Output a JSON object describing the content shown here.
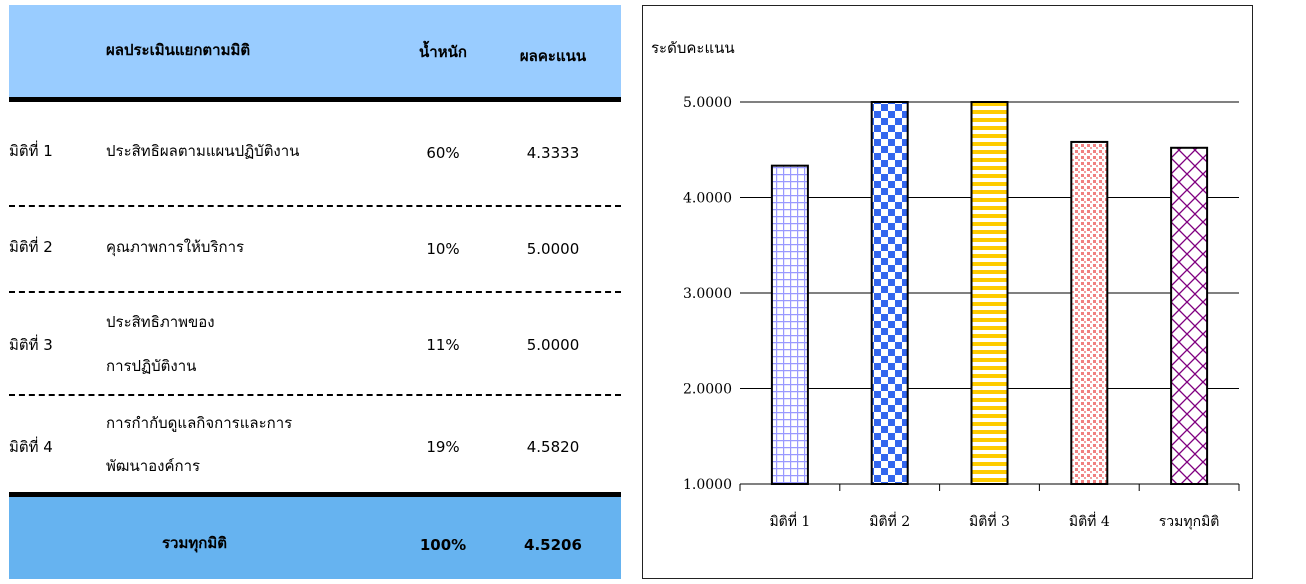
{
  "table": {
    "headers": {
      "dimension": "ผลประเมินแยกตามมิติ",
      "weight": "น้ำหนัก",
      "score": "ผลคะแนน"
    },
    "rows": [
      {
        "dim": "มิติที่ 1",
        "name": [
          "ประสิทธิผลตามแผนปฏิบัติงาน"
        ],
        "weight": "60%",
        "score": "4.3333"
      },
      {
        "dim": "มิติที่ 2",
        "name": [
          "คุณภาพการให้บริการ"
        ],
        "weight": "10%",
        "score": "5.0000"
      },
      {
        "dim": "มิติที่ 3",
        "name": [
          "ประสิทธิภาพของ",
          "การปฏิบัติงาน"
        ],
        "weight": "11%",
        "score": "5.0000"
      },
      {
        "dim": "มิติที่ 4",
        "name": [
          "การกำกับดูแลกิจการและการ",
          "พัฒนาองค์การ"
        ],
        "weight": "19%",
        "score": "4.5820"
      }
    ],
    "total": {
      "label": "รวมทุกมิติ",
      "weight": "100%",
      "score": "4.5206"
    },
    "colors": {
      "header_bg": "#99ccff",
      "total_bg": "#66b3f0"
    }
  },
  "chart_data": {
    "type": "bar",
    "ylabel": "ระดับคะแนน",
    "ylim": [
      1,
      5
    ],
    "yticks": [
      "1.0000",
      "2.0000",
      "3.0000",
      "4.0000",
      "5.0000"
    ],
    "grid": true,
    "categories": [
      "มิติที่ 1",
      "มิติที่ 2",
      "มิติที่ 3",
      "มิติที่ 4",
      "รวมทุกมิติ"
    ],
    "values": [
      4.3333,
      5.0,
      5.0,
      4.582,
      4.5206
    ],
    "patterns": [
      "grid-lavender",
      "checker-blue",
      "stripes-yellow",
      "dots-pink",
      "lattice-purple"
    ],
    "colors": [
      "#9999ff",
      "#3366ee",
      "#ffcc00",
      "#f08080",
      "#800080"
    ]
  }
}
